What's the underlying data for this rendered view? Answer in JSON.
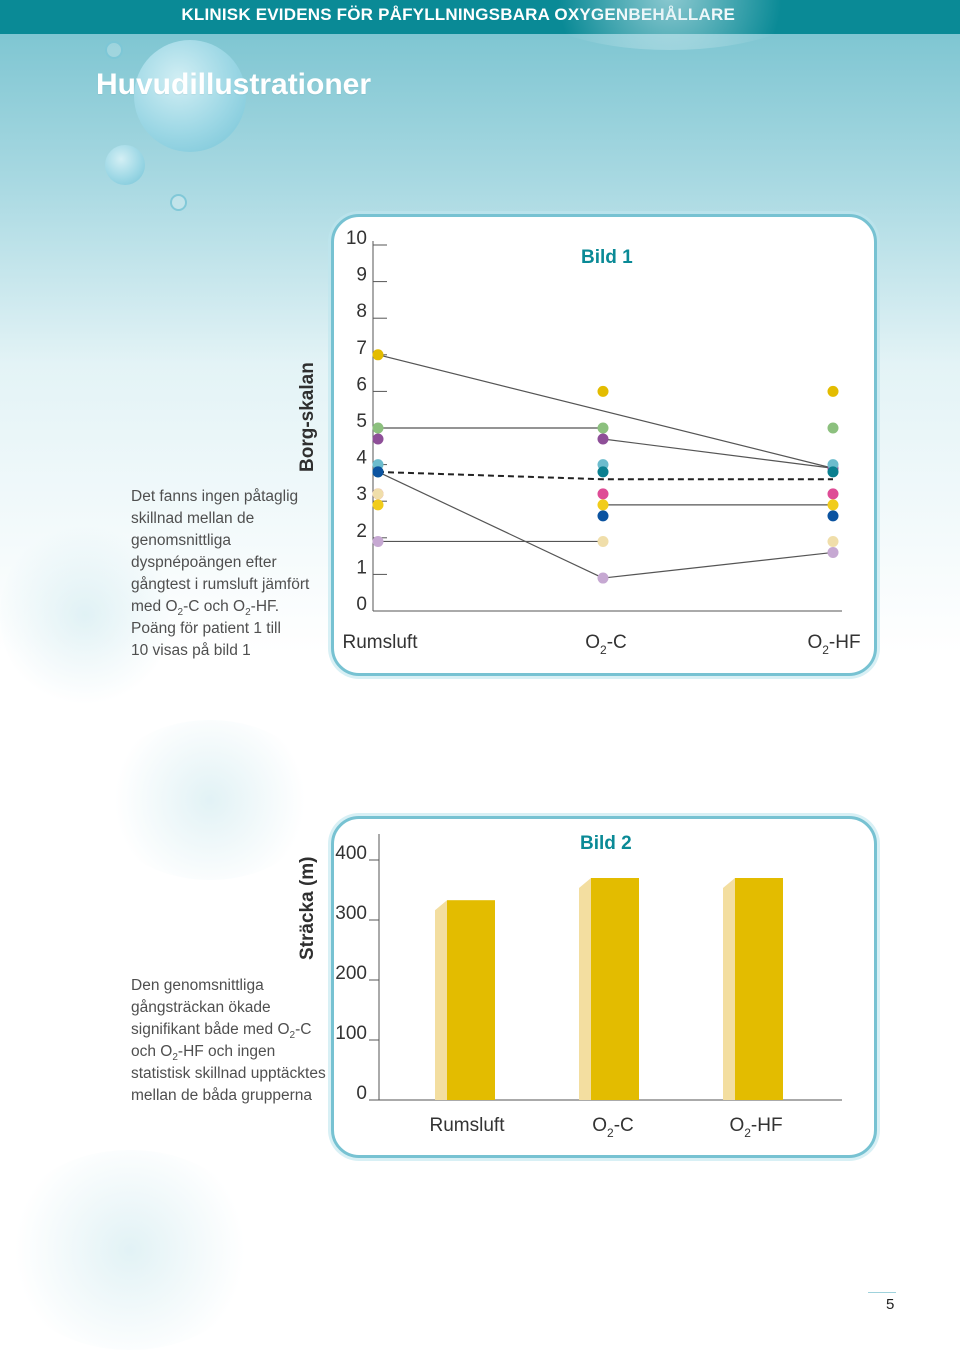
{
  "header": {
    "text": "KLINISK EVIDENS FÖR PÅFYLLNINGSBARA OXYGENBEHÅLLARE"
  },
  "page": {
    "title": "Huvudillustrationer",
    "number": "5"
  },
  "colors": {
    "brand": "#0a8a96",
    "panel_border": "#77c2d2",
    "bar": "#e3bc00",
    "bar_shade": "#f3dea0"
  },
  "figure1": {
    "description": {
      "l1": "Det fanns ingen påtaglig",
      "l2": "skillnad mellan de",
      "l3": "genomsnittliga",
      "l4": "dyspnépoängen efter",
      "l5": "gångtest i rumsluft jämfört",
      "l6a": "med O",
      "l6b": "2",
      "l6c": "-C och O",
      "l6d": "2",
      "l6e": "-HF.",
      "l7": "Poäng för patient 1 till",
      "l8": "10 visas på bild 1"
    }
  },
  "figure2": {
    "description": {
      "l1": "Den genomsnittliga",
      "l2": "gångsträckan ökade",
      "l3a": "signifikant både med O",
      "l3b": "2",
      "l3c": "-C",
      "l4a": "och O",
      "l4b": "2",
      "l4c": "-HF och ingen",
      "l5": "statistisk skillnad upptäcktes",
      "l6": "mellan de båda grupperna"
    }
  },
  "chart_data": [
    {
      "type": "line",
      "title": "Bild 1",
      "ylabel": "Borg-skalan",
      "xlabel": "",
      "categories": [
        {
          "main": "Rumsluft",
          "sub": "",
          "suffix": ""
        },
        {
          "main": "O",
          "sub": "2",
          "suffix": "-C"
        },
        {
          "main": "O",
          "sub": "2",
          "suffix": "-HF"
        }
      ],
      "yticks": [
        "0",
        "1",
        "2",
        "3",
        "4",
        "5",
        "6",
        "7",
        "8",
        "9",
        "10"
      ],
      "ylim": [
        0,
        10
      ],
      "series": [
        {
          "values": [
            7.0,
            6.0,
            6.0
          ],
          "color": "#e3bc00",
          "drawn": [
            false,
            false,
            false
          ]
        },
        {
          "values": [
            5.0,
            5.0,
            5.0
          ],
          "color": "#8cc07e",
          "drawn": [
            false,
            false,
            false
          ]
        },
        {
          "values": [
            4.7,
            4.7,
            3.9
          ],
          "color": "#8e4f98",
          "drawn": [
            false,
            true,
            false
          ]
        },
        {
          "values": [
            4.0,
            4.0,
            4.0
          ],
          "color": "#6cbccd",
          "drawn": [
            false,
            false,
            false
          ]
        },
        {
          "values": [
            3.8,
            3.8,
            3.8
          ],
          "color": "#0a7f8f",
          "drawn": [
            false,
            false,
            false
          ]
        },
        {
          "values": [
            3.2,
            3.2,
            3.2
          ],
          "color": "#de4c96",
          "drawn": [
            false,
            false,
            false
          ]
        },
        {
          "values": [
            2.9,
            2.9,
            2.9
          ],
          "color": "#f1cc1a",
          "drawn": [
            false,
            false,
            false
          ]
        },
        {
          "values": [
            3.8,
            2.6,
            2.6
          ],
          "color": "#0b53a0",
          "drawn": [
            false,
            false,
            false
          ]
        },
        {
          "values": [
            3.2,
            1.9,
            1.9
          ],
          "color": "#f0deaa",
          "drawn": [
            false,
            false,
            false
          ]
        },
        {
          "values": [
            1.9,
            0.9,
            1.6
          ],
          "color": "#c6a8d2",
          "drawn": [
            true,
            true,
            false
          ]
        }
      ],
      "lines": [
        {
          "from": [
            0,
            7.0
          ],
          "to": [
            2,
            3.9
          ]
        },
        {
          "from": [
            0,
            3.8
          ],
          "to": [
            1,
            0.9
          ]
        },
        {
          "from": [
            1,
            0.9
          ],
          "to": [
            2,
            1.6
          ]
        },
        {
          "from": [
            0,
            5.0
          ],
          "to": [
            1,
            5.0
          ]
        },
        {
          "from": [
            1,
            4.7
          ],
          "to": [
            2,
            3.9
          ]
        },
        {
          "from": [
            0,
            1.9
          ],
          "to": [
            1,
            1.9
          ]
        },
        {
          "from": [
            1,
            2.9
          ],
          "to": [
            2,
            2.9
          ]
        }
      ],
      "mean_line": {
        "values": [
          3.8,
          3.6,
          3.6
        ],
        "style": "dashed"
      }
    },
    {
      "type": "bar",
      "title": "Bild 2",
      "ylabel": "Sträcka (m)",
      "xlabel": "",
      "categories": [
        {
          "main": "Rumsluft",
          "sub": "",
          "suffix": ""
        },
        {
          "main": "O",
          "sub": "2",
          "suffix": "-C"
        },
        {
          "main": "O",
          "sub": "2",
          "suffix": "-HF"
        }
      ],
      "values": [
        333,
        370,
        370
      ],
      "yticks": [
        "0",
        "100",
        "200",
        "300",
        "400"
      ],
      "ylim": [
        0,
        400
      ]
    }
  ]
}
